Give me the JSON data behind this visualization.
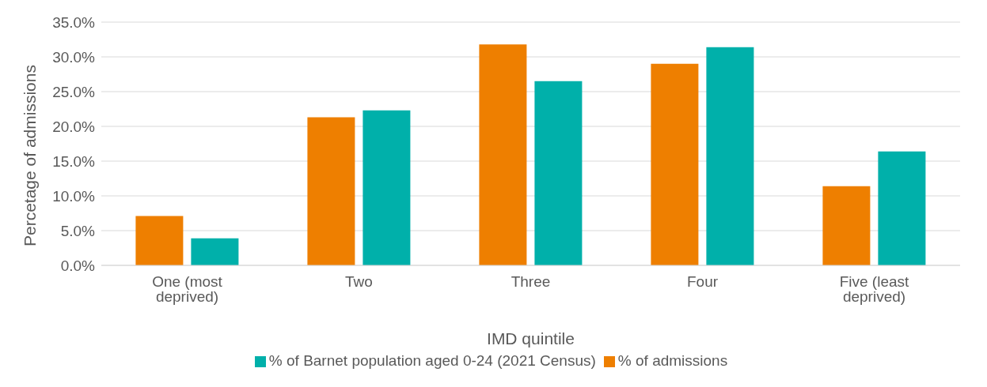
{
  "chart_data": {
    "type": "bar",
    "xlabel": "IMD quintile",
    "ylabel": "Percetage of admissions",
    "categories": [
      "One (most deprived)",
      "Two",
      "Three",
      "Four",
      "Five (least deprived)"
    ],
    "series": [
      {
        "name": "% of admissions",
        "color": "#ee7f00",
        "values": [
          7.1,
          21.3,
          31.8,
          29.0,
          11.4
        ]
      },
      {
        "name": "% of Barnet population aged 0-24 (2021 Census)",
        "color": "#00b0aa",
        "values": [
          3.9,
          22.3,
          26.5,
          31.4,
          16.4
        ]
      }
    ],
    "ylim": [
      0,
      35
    ],
    "yticks": [
      {
        "value": 0,
        "label": "0.0%"
      },
      {
        "value": 5,
        "label": "5.0%"
      },
      {
        "value": 10,
        "label": "10.0%"
      },
      {
        "value": 15,
        "label": "15.0%"
      },
      {
        "value": 20,
        "label": "20.0%"
      },
      {
        "value": 25,
        "label": "25.0%"
      },
      {
        "value": 30,
        "label": "30.0%"
      },
      {
        "value": 35,
        "label": "35.0%"
      }
    ],
    "grid": "y",
    "legend": "bottom"
  }
}
